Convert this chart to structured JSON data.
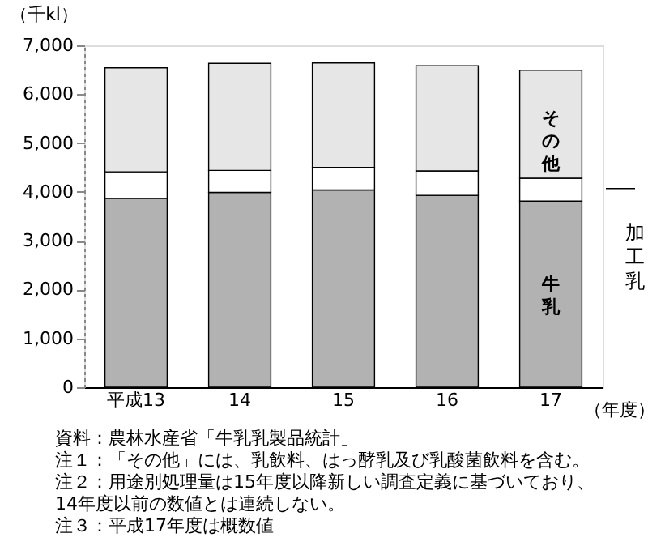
{
  "chart_data": {
    "type": "bar",
    "stacked": true,
    "ylabel": "（千kl）",
    "xlabel": "（年度）",
    "categories": [
      "平成13",
      "14",
      "15",
      "16",
      "17"
    ],
    "series": [
      {
        "name": "牛乳",
        "color": "#b2b2b2",
        "values": [
          3870,
          3990,
          4040,
          3930,
          3810
        ]
      },
      {
        "name": "加工乳",
        "color": "#ffffff",
        "values": [
          540,
          450,
          460,
          500,
          470
        ]
      },
      {
        "name": "その他",
        "color": "#e6e6e6",
        "values": [
          2130,
          2190,
          2140,
          2150,
          2210
        ]
      }
    ],
    "ylim": [
      0,
      7000
    ],
    "yticks": [
      {
        "value": 0,
        "label": "0"
      },
      {
        "value": 1000,
        "label": "1,000"
      },
      {
        "value": 2000,
        "label": "2,000"
      },
      {
        "value": 3000,
        "label": "3,000"
      },
      {
        "value": 4000,
        "label": "4,000"
      },
      {
        "value": 5000,
        "label": "5,000"
      },
      {
        "value": 6000,
        "label": "6,000"
      },
      {
        "value": 7000,
        "label": "7,000"
      }
    ],
    "grid": false,
    "legend": false,
    "annotations": [
      "資料：農林水産省「牛乳乳製品統計」",
      "注１：「その他」には、乳飲料、はっ酵乳及び乳酸菌飲料を含む。",
      "注２：用途別処理量は15年度以降新しい調査定義に基づいており、",
      "　　　14年度以前の数値とは連続しない。",
      "注３：平成17年度は概数値"
    ]
  }
}
